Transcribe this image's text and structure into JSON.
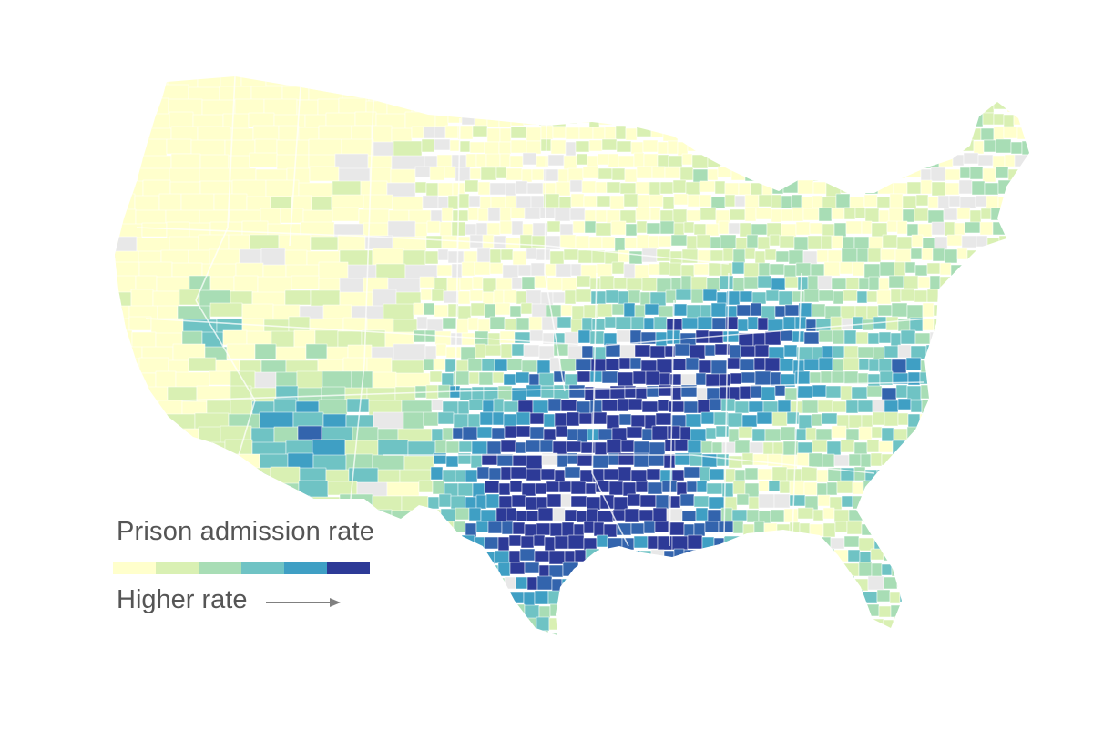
{
  "legend": {
    "title": "Prison admission rate",
    "note": "Higher rate",
    "arrow_icon": "right-arrow-icon",
    "colors": [
      "#ffffcc",
      "#d9f0b3",
      "#a8ddb5",
      "#6fc3c4",
      "#3f9fc4",
      "#3364ad",
      "#2d3a97"
    ]
  },
  "map": {
    "no_data_color": "#e8e8e8",
    "border_color": "#ffffff"
  }
}
